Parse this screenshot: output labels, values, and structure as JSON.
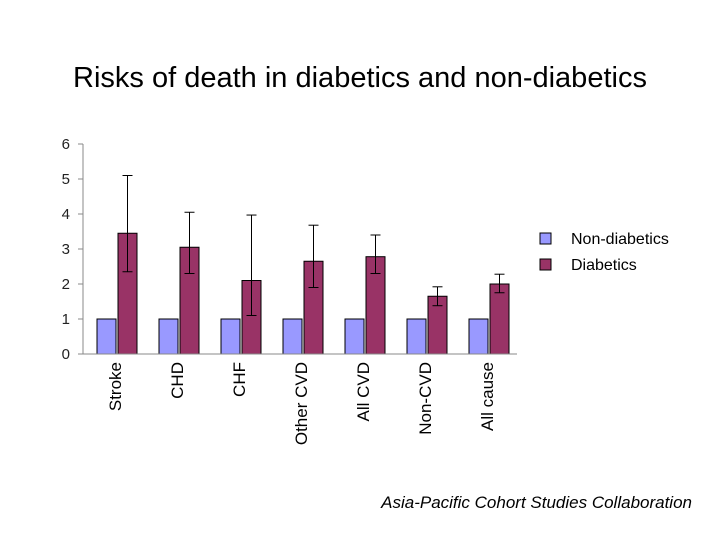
{
  "chart_data": {
    "type": "bar",
    "title": "Risks of death in diabetics and non-diabetics",
    "source": "Asia-Pacific Cohort Studies Collaboration",
    "categories": [
      "Stroke",
      "CHD",
      "CHF",
      "Other CVD",
      "All CVD",
      "Non-CVD",
      "All cause"
    ],
    "ylim": [
      0,
      6
    ],
    "yticks": [
      "0",
      "1",
      "2",
      "3",
      "4",
      "5",
      "6"
    ],
    "legend_position": "right",
    "series": [
      {
        "name": "Non-diabetics",
        "color": "#9999ff",
        "values": [
          1,
          1,
          1,
          1,
          1,
          1,
          1
        ]
      },
      {
        "name": "Diabetics",
        "color": "#993366",
        "values": [
          3.45,
          3.05,
          2.1,
          2.65,
          2.78,
          1.65,
          2.0
        ],
        "ci_low": [
          2.35,
          2.3,
          1.1,
          1.9,
          2.3,
          1.38,
          1.75
        ],
        "ci_high": [
          5.1,
          4.05,
          3.97,
          3.68,
          3.4,
          1.92,
          2.28
        ]
      }
    ]
  }
}
